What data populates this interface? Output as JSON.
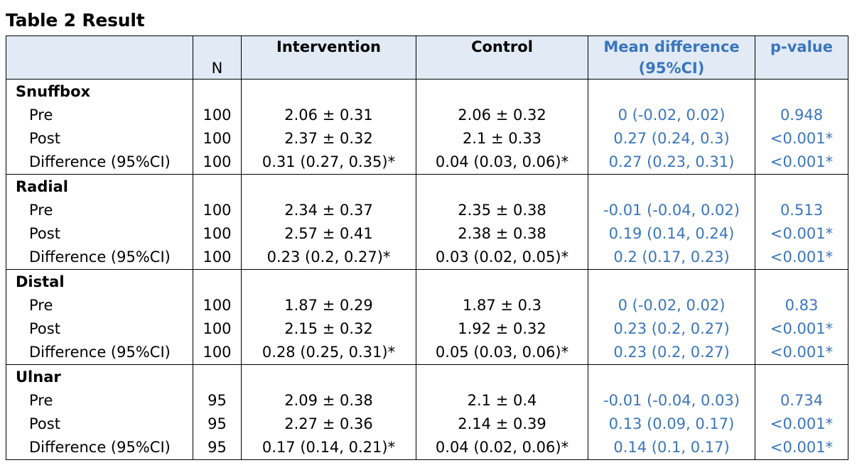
{
  "title": "Table 2 Result",
  "headers": {
    "n": "N",
    "intervention": "Intervention",
    "control": "Control",
    "mean_diff_line1": "Mean difference",
    "mean_diff_line2": "(95%CI)",
    "pvalue": "p-value"
  },
  "sections": [
    {
      "name": "Snuffbox",
      "rows": [
        {
          "label": "Pre",
          "n": "100",
          "intervention": "2.06 ± 0.31",
          "control": "2.06 ± 0.32",
          "mean_diff": "0 (-0.02, 0.02)",
          "p": "0.948"
        },
        {
          "label": "Post",
          "n": "100",
          "intervention": "2.37 ± 0.32",
          "control": "2.1 ± 0.33",
          "mean_diff": "0.27 (0.24, 0.3)",
          "p": "<0.001*"
        },
        {
          "label": "Difference (95%CI)",
          "n": "100",
          "intervention": "0.31 (0.27, 0.35)*",
          "control": "0.04 (0.03, 0.06)*",
          "mean_diff": "0.27 (0.23, 0.31)",
          "p": "<0.001*"
        }
      ]
    },
    {
      "name": "Radial",
      "rows": [
        {
          "label": "Pre",
          "n": "100",
          "intervention": "2.34 ± 0.37",
          "control": "2.35 ± 0.38",
          "mean_diff": "-0.01 (-0.04, 0.02)",
          "p": "0.513"
        },
        {
          "label": "Post",
          "n": "100",
          "intervention": "2.57 ± 0.41",
          "control": "2.38 ± 0.38",
          "mean_diff": "0.19 (0.14, 0.24)",
          "p": "<0.001*"
        },
        {
          "label": "Difference (95%CI)",
          "n": "100",
          "intervention": "0.23 (0.2, 0.27)*",
          "control": "0.03 (0.02, 0.05)*",
          "mean_diff": "0.2 (0.17, 0.23)",
          "p": "<0.001*"
        }
      ]
    },
    {
      "name": "Distal",
      "rows": [
        {
          "label": "Pre",
          "n": "100",
          "intervention": "1.87 ± 0.29",
          "control": "1.87 ± 0.3",
          "mean_diff": "0 (-0.02, 0.02)",
          "p": "0.83"
        },
        {
          "label": "Post",
          "n": "100",
          "intervention": "2.15 ± 0.32",
          "control": "1.92 ± 0.32",
          "mean_diff": "0.23 (0.2, 0.27)",
          "p": "<0.001*"
        },
        {
          "label": "Difference (95%CI)",
          "n": "100",
          "intervention": "0.28 (0.25, 0.31)*",
          "control": "0.05 (0.03, 0.06)*",
          "mean_diff": "0.23 (0.2, 0.27)",
          "p": "<0.001*"
        }
      ]
    },
    {
      "name": "Ulnar",
      "rows": [
        {
          "label": "Pre",
          "n": "95",
          "intervention": "2.09 ± 0.38",
          "control": "2.1 ± 0.4",
          "mean_diff": "-0.01 (-0.04, 0.03)",
          "p": "0.734"
        },
        {
          "label": "Post",
          "n": "95",
          "intervention": "2.27 ± 0.36",
          "control": "2.14 ± 0.39",
          "mean_diff": "0.13 (0.09, 0.17)",
          "p": "<0.001*"
        },
        {
          "label": "Difference (95%CI)",
          "n": "95",
          "intervention": "0.17 (0.14, 0.21)*",
          "control": "0.04 (0.02, 0.06)*",
          "mean_diff": "0.14 (0.1, 0.17)",
          "p": "<0.001*"
        }
      ]
    }
  ],
  "colors": {
    "header_bg": "#e1eaf5",
    "accent_blue": "#3a75bc"
  }
}
